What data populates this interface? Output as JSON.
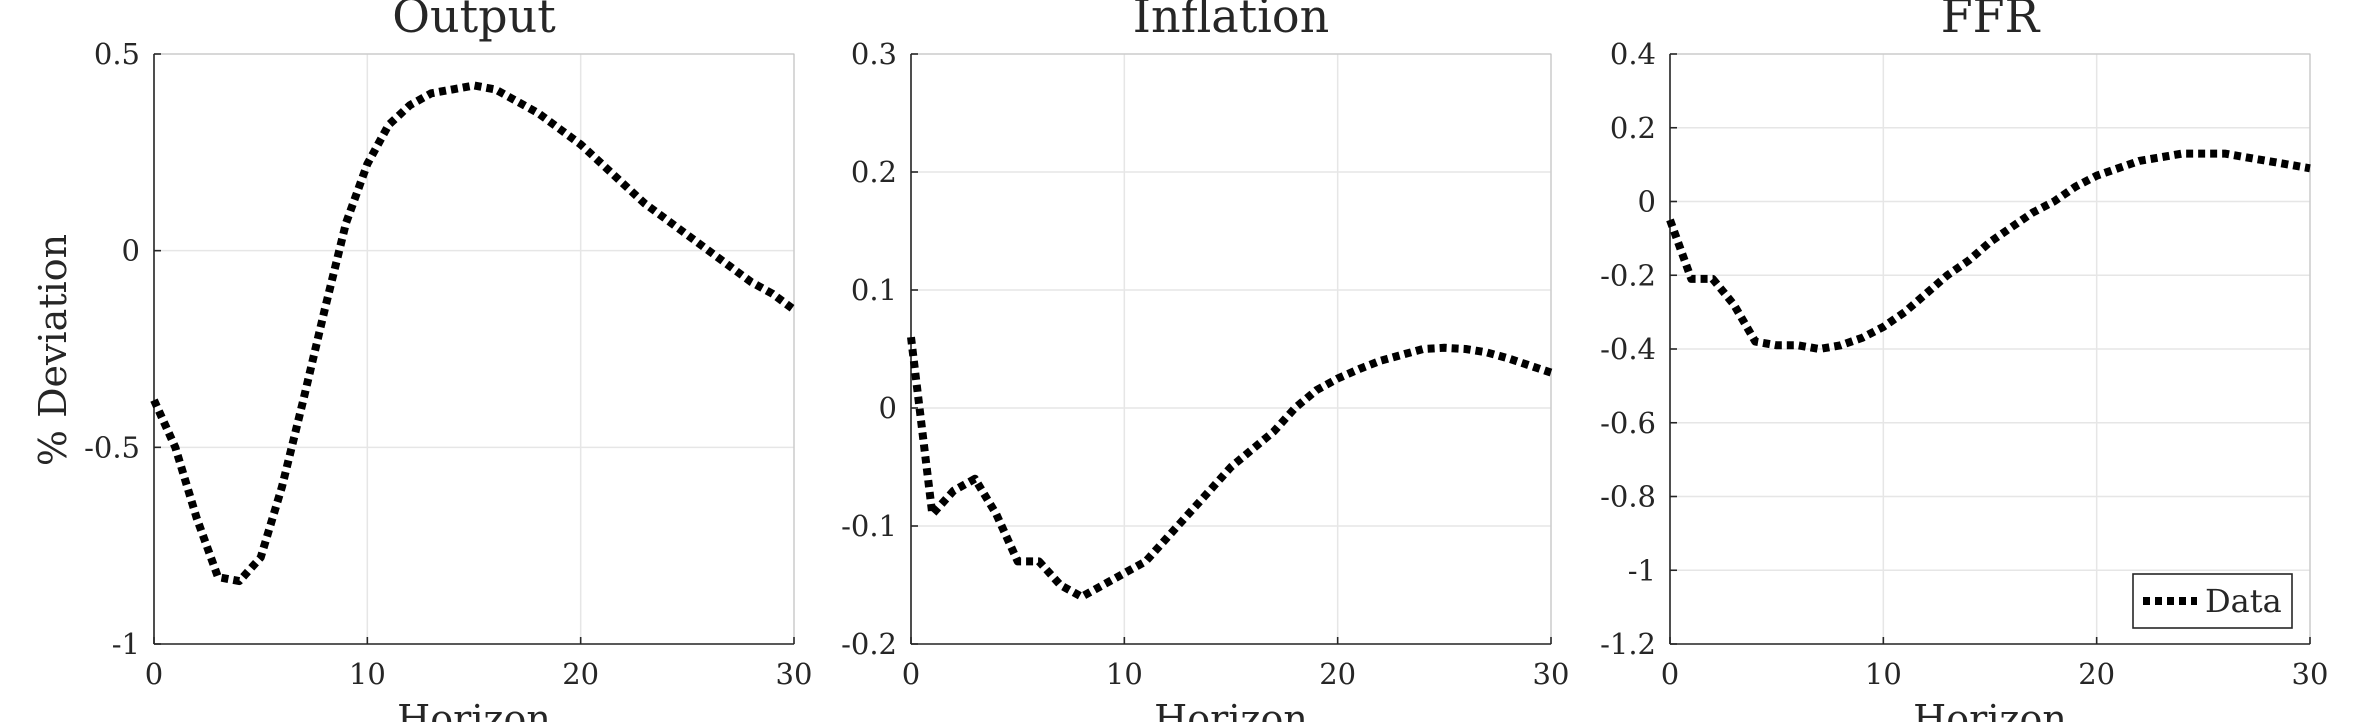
{
  "figure": {
    "ylabel": "% Deviation"
  },
  "legend": {
    "label": "Data",
    "placement": "bottom-right of third panel"
  },
  "colors": {
    "line": "#000000",
    "grid": "#e6e6e6",
    "axis": "#262626"
  },
  "chart_data": [
    {
      "type": "line",
      "title": "Output",
      "xlabel": "Horizon",
      "ylabel": "% Deviation",
      "xlim": [
        0,
        30
      ],
      "ylim": [
        -1,
        0.5
      ],
      "xticks": [
        "0",
        "10",
        "20",
        "30"
      ],
      "yticks": [
        "-1",
        "-0.5",
        "0",
        "0.5"
      ],
      "grid": true,
      "line_style": "dotted",
      "series": [
        {
          "name": "Data",
          "x": [
            0,
            1,
            2,
            3,
            4,
            5,
            6,
            7,
            8,
            9,
            10,
            11,
            12,
            13,
            14,
            15,
            16,
            17,
            18,
            19,
            20,
            21,
            22,
            23,
            24,
            25,
            26,
            27,
            28,
            29,
            30
          ],
          "y": [
            -0.38,
            -0.5,
            -0.68,
            -0.83,
            -0.84,
            -0.78,
            -0.6,
            -0.38,
            -0.15,
            0.07,
            0.22,
            0.32,
            0.37,
            0.4,
            0.41,
            0.42,
            0.41,
            0.38,
            0.35,
            0.31,
            0.27,
            0.22,
            0.17,
            0.12,
            0.08,
            0.04,
            0.0,
            -0.04,
            -0.08,
            -0.11,
            -0.15
          ]
        }
      ]
    },
    {
      "type": "line",
      "title": "Inflation",
      "xlabel": "Horizon",
      "xlim": [
        0,
        30
      ],
      "ylim": [
        -0.2,
        0.3
      ],
      "xticks": [
        "0",
        "10",
        "20",
        "30"
      ],
      "yticks": [
        "-0.2",
        "-0.1",
        "0",
        "0.1",
        "0.2",
        "0.3"
      ],
      "grid": true,
      "line_style": "dotted",
      "series": [
        {
          "name": "Data",
          "x": [
            0,
            1,
            2,
            3,
            4,
            5,
            6,
            7,
            8,
            9,
            10,
            11,
            12,
            13,
            14,
            15,
            16,
            17,
            18,
            19,
            20,
            21,
            22,
            23,
            24,
            25,
            26,
            27,
            28,
            29,
            30
          ],
          "y": [
            0.06,
            -0.09,
            -0.07,
            -0.06,
            -0.09,
            -0.13,
            -0.13,
            -0.15,
            -0.16,
            -0.15,
            -0.14,
            -0.13,
            -0.11,
            -0.09,
            -0.07,
            -0.05,
            -0.035,
            -0.02,
            0.0,
            0.015,
            0.025,
            0.033,
            0.04,
            0.045,
            0.05,
            0.051,
            0.05,
            0.047,
            0.042,
            0.036,
            0.03
          ]
        }
      ]
    },
    {
      "type": "line",
      "title": "FFR",
      "xlabel": "Horizon",
      "xlim": [
        0,
        30
      ],
      "ylim": [
        -1.2,
        0.4
      ],
      "xticks": [
        "0",
        "10",
        "20",
        "30"
      ],
      "yticks": [
        "-1.2",
        "-1",
        "-0.8",
        "-0.6",
        "-0.4",
        "-0.2",
        "0",
        "0.2",
        "0.4"
      ],
      "grid": true,
      "line_style": "dotted",
      "series": [
        {
          "name": "Data",
          "x": [
            0,
            1,
            2,
            3,
            4,
            5,
            6,
            7,
            8,
            9,
            10,
            11,
            12,
            13,
            14,
            15,
            16,
            17,
            18,
            19,
            20,
            21,
            22,
            23,
            24,
            25,
            26,
            27,
            28,
            29,
            30
          ],
          "y": [
            -0.05,
            -0.21,
            -0.21,
            -0.28,
            -0.38,
            -0.39,
            -0.39,
            -0.4,
            -0.39,
            -0.37,
            -0.34,
            -0.3,
            -0.25,
            -0.2,
            -0.16,
            -0.11,
            -0.07,
            -0.03,
            0.0,
            0.04,
            0.07,
            0.09,
            0.11,
            0.12,
            0.13,
            0.13,
            0.13,
            0.12,
            0.11,
            0.1,
            0.09
          ]
        }
      ]
    }
  ]
}
